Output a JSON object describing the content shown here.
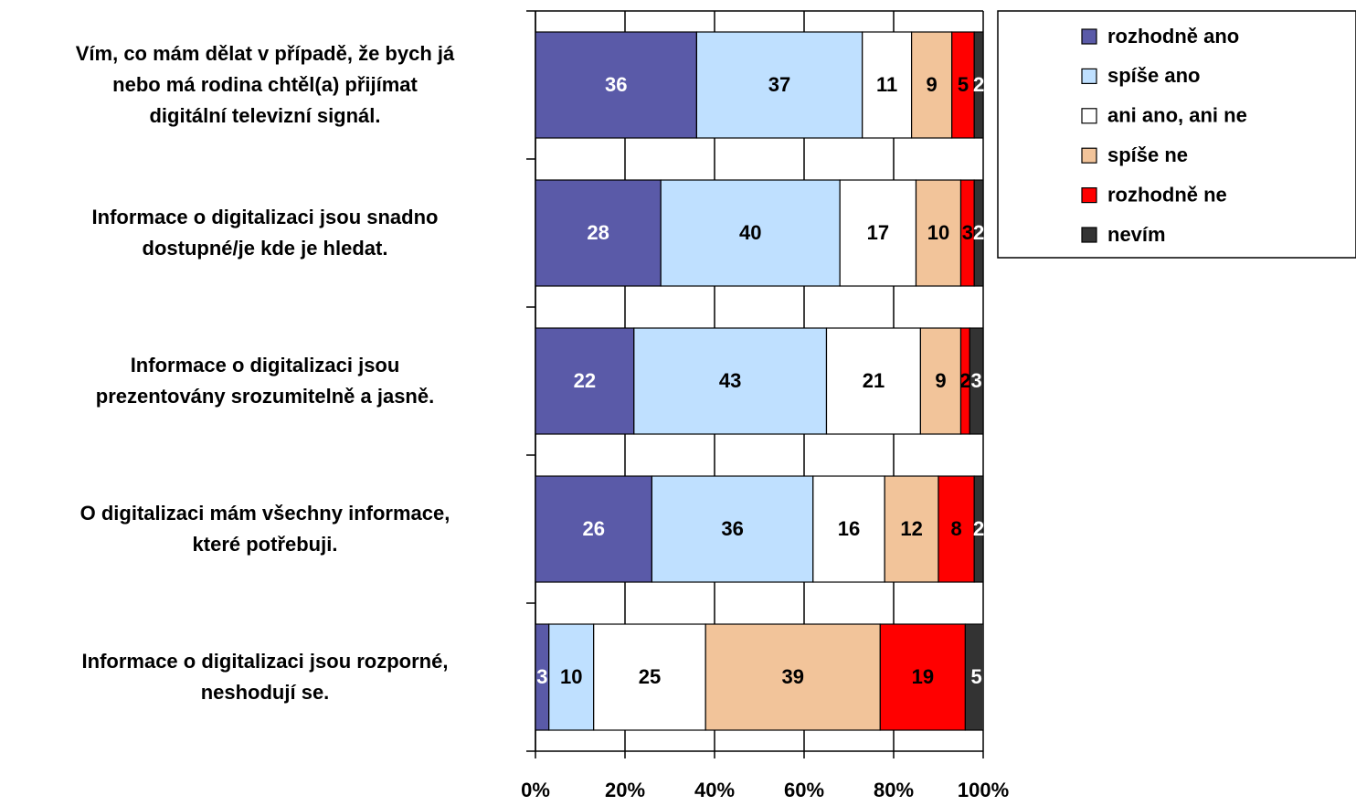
{
  "chart_data": {
    "type": "bar",
    "orientation": "horizontal",
    "stacked": true,
    "categories": [
      "Vím, co mám dělat v případě, že bych já\nnebo má rodina chtěl(a) přijímat\ndigitální televizní signál.",
      "Informace o digitalizaci jsou snadno\ndostupné/je kde je hledat.",
      "Informace o digitalizaci jsou\nprezentovány srozumitelně a jasně.",
      "O digitalizaci mám všechny informace,\nkteré potřebuji.",
      "Informace o digitalizaci jsou rozporné,\nneshodují se."
    ],
    "series": [
      {
        "name": "rozhodně ano",
        "color": "#5a5aa8",
        "label_color": "#ffffff",
        "values": [
          36,
          28,
          22,
          26,
          3
        ]
      },
      {
        "name": "spíše ano",
        "color": "#bfe0ff",
        "label_color": "#000000",
        "values": [
          37,
          40,
          43,
          36,
          10
        ]
      },
      {
        "name": "ani ano, ani ne",
        "color": "#ffffff",
        "label_color": "#000000",
        "values": [
          11,
          17,
          21,
          16,
          25
        ]
      },
      {
        "name": "spíše ne",
        "color": "#f2c49a",
        "label_color": "#000000",
        "values": [
          9,
          10,
          9,
          12,
          39
        ]
      },
      {
        "name": "rozhodně ne",
        "color": "#ff0000",
        "label_color": "#000000",
        "values": [
          5,
          3,
          2,
          8,
          19
        ]
      },
      {
        "name": "nevím",
        "color": "#333333",
        "label_color": "#ffffff",
        "values": [
          2,
          2,
          3,
          2,
          5
        ]
      }
    ],
    "xlim": [
      0,
      100
    ],
    "xticks": [
      {
        "value": 0,
        "label": "0%"
      },
      {
        "value": 20,
        "label": "20%"
      },
      {
        "value": 40,
        "label": "40%"
      },
      {
        "value": 60,
        "label": "60%"
      },
      {
        "value": 80,
        "label": "80%"
      },
      {
        "value": 100,
        "label": "100%"
      }
    ],
    "grid": true,
    "legend": "upper right"
  }
}
